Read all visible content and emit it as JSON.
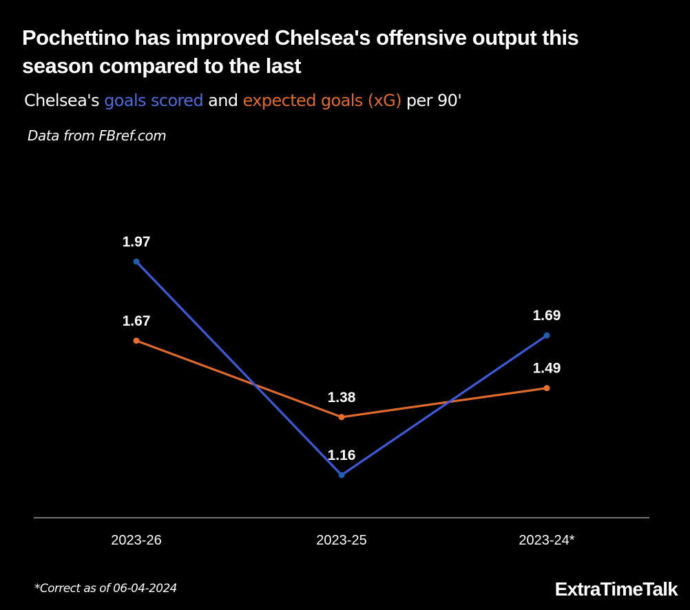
{
  "header": {
    "title": "Pochettino has improved Chelsea's offensive output this season compared to the last",
    "subtitle_prefix": "Chelsea's ",
    "subtitle_series1": "goals scored",
    "subtitle_middle": " and ",
    "subtitle_series2": "expected goals (xG)",
    "subtitle_suffix": " per 90'",
    "source": "Data from FBref.com"
  },
  "footer": {
    "footnote": "*Correct as of 06-04-2024",
    "brand": "ExtraTimeTalk"
  },
  "chart_data": {
    "type": "line",
    "title": "Pochettino has improved Chelsea's offensive output this season compared to the last",
    "subtitle": "Chelsea's goals scored and expected goals (xG) per 90'",
    "xlabel": "",
    "ylabel": "",
    "categories": [
      "2023-26",
      "2023-25",
      "2023-24*"
    ],
    "series": [
      {
        "name": "goals scored",
        "color": "#3b5bdb",
        "marker_color": "#1f5fb0",
        "values": [
          1.97,
          1.16,
          1.69
        ],
        "labels": [
          "1.97",
          "1.16",
          "1.69"
        ]
      },
      {
        "name": "expected goals (xG)",
        "color": "#e06a2b",
        "marker_color": "#e8702f",
        "values": [
          1.67,
          1.38,
          1.49
        ],
        "labels": [
          "1.67",
          "1.38",
          "1.49"
        ]
      }
    ],
    "ylim": [
      0.97,
      2.2
    ],
    "grid": false,
    "legend": "in-subtitle",
    "y_axis_visible": false
  }
}
